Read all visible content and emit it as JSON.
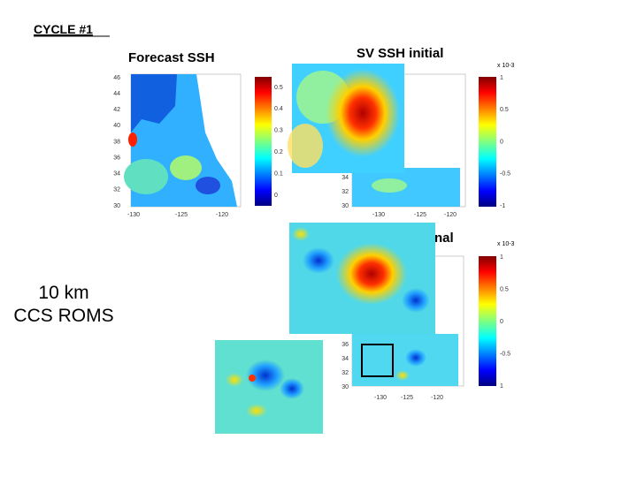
{
  "header": {
    "title": "CYCLE #1"
  },
  "side_label": {
    "lines": [
      "10 km",
      "CCS ROMS"
    ]
  },
  "panels": [
    {
      "title": "Forecast SSH",
      "yticks": [
        "46",
        "44",
        "42",
        "40",
        "38",
        "36",
        "34",
        "32",
        "30"
      ],
      "xticks": [
        "-130",
        "-125",
        "-120"
      ],
      "colorbar": [
        "0.5",
        "0.4",
        "0.3",
        "0.2",
        "0.1",
        "0"
      ]
    },
    {
      "title": "SV SSH initial",
      "scale": "x 10-3",
      "yticks": [
        "34",
        "32",
        "30"
      ],
      "xticks": [
        "-130",
        "-125",
        "-120"
      ],
      "colorbar": [
        "1",
        "0.5",
        "0",
        "-0.5",
        "-1"
      ]
    },
    {
      "title": "nal",
      "scale": "x 10-3",
      "yticks": [
        "36",
        "34",
        "32",
        "30"
      ],
      "xticks": [
        "-130",
        "-125",
        "-120"
      ],
      "colorbar": [
        "1",
        "0.5",
        "0",
        "-0.5",
        "1"
      ]
    }
  ]
}
